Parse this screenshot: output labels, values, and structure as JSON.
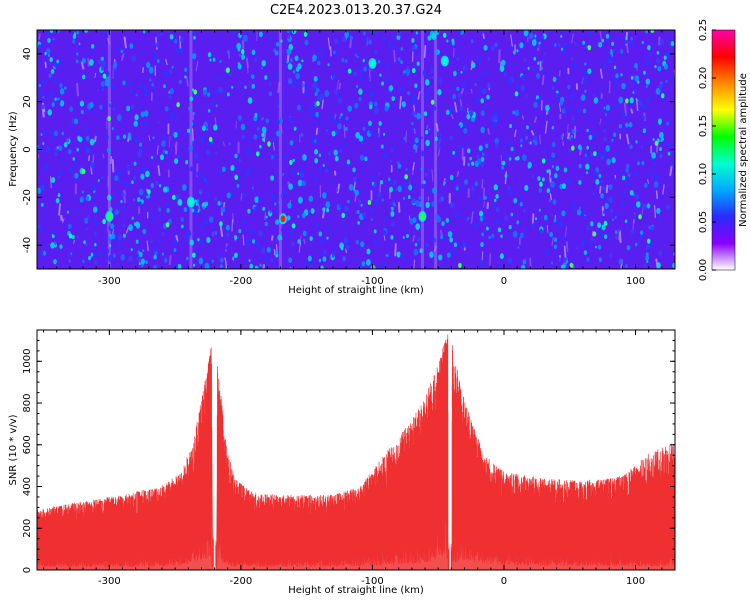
{
  "title": "C2E4.2023.013.20.37.G24",
  "chart_data": [
    {
      "type": "heatmap",
      "xlabel": "Height of straight line (km)",
      "ylabel": "Frequency (Hz)",
      "xlim": [
        -355,
        130
      ],
      "ylim": [
        -50,
        50
      ],
      "x_ticks": [
        -300,
        -200,
        -100,
        0,
        100
      ],
      "y_ticks": [
        -40,
        -20,
        0,
        20,
        40
      ],
      "colorbar": {
        "label": "Normalized spectral amplitude",
        "range": [
          0,
          0.25
        ],
        "ticks": [
          "0.00",
          "0.05",
          "0.10",
          "0.15",
          "0.20",
          "0.25"
        ],
        "colors": [
          "#ffffff",
          "#8a00ff",
          "#2a2aff",
          "#00aaff",
          "#00ffcc",
          "#00ff00",
          "#ffff00",
          "#ff8800",
          "#ff0000",
          "#ff00aa"
        ]
      },
      "background_color": "#5a1ef0",
      "hotspots": [
        {
          "x": -168,
          "y": -29,
          "value": 0.22
        },
        {
          "x": -300,
          "y": -28,
          "value": 0.09
        },
        {
          "x": -238,
          "y": -22,
          "value": 0.08
        },
        {
          "x": -62,
          "y": -28,
          "value": 0.09
        },
        {
          "x": -45,
          "y": 37,
          "value": 0.07
        },
        {
          "x": -100,
          "y": 36,
          "value": 0.07
        }
      ]
    },
    {
      "type": "line",
      "xlabel": "Height of straight line (km)",
      "ylabel": "SNR (10 * v/v)",
      "xlim": [
        -355,
        130
      ],
      "ylim": [
        0,
        1150
      ],
      "x_ticks": [
        -300,
        -200,
        -100,
        0,
        100
      ],
      "y_ticks": [
        0,
        200,
        400,
        600,
        800,
        1000
      ],
      "color": "#f03030",
      "envelope": {
        "x": [
          -355,
          -320,
          -290,
          -260,
          -245,
          -235,
          -228,
          -222,
          -217,
          -212,
          -205,
          -190,
          -160,
          -130,
          -110,
          -90,
          -75,
          -62,
          -52,
          -45,
          -41,
          -38,
          -33,
          -25,
          -15,
          0,
          30,
          60,
          90,
          110,
          130
        ],
        "peak": [
          290,
          330,
          360,
          410,
          470,
          650,
          900,
          1100,
          960,
          650,
          440,
          370,
          360,
          360,
          400,
          560,
          680,
          800,
          960,
          1100,
          1150,
          1050,
          880,
          720,
          560,
          470,
          440,
          430,
          450,
          560,
          620
        ],
        "base": [
          70,
          70,
          75,
          85,
          110,
          160,
          260,
          330,
          260,
          120,
          80,
          75,
          75,
          80,
          90,
          110,
          130,
          160,
          230,
          300,
          200,
          160,
          230,
          180,
          140,
          110,
          95,
          90,
          85,
          85,
          85
        ]
      },
      "gaps": [
        {
          "x": -220,
          "width": 4,
          "floor": 30
        },
        {
          "x": -41,
          "width": 3,
          "floor": 5
        }
      ]
    }
  ]
}
